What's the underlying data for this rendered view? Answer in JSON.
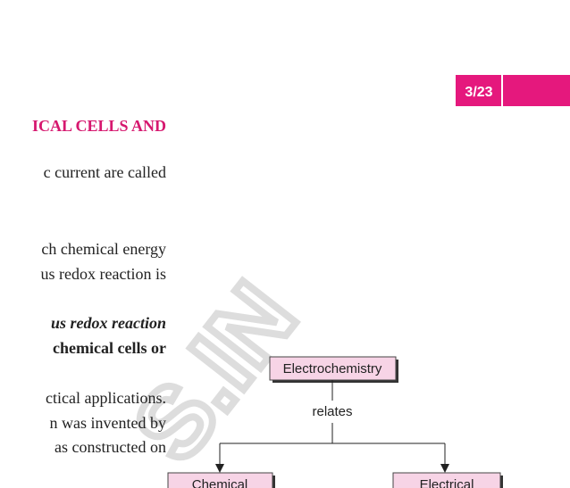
{
  "header": {
    "page_number": "3/23"
  },
  "text": {
    "heading": "ICAL CELLS AND",
    "lines": [
      "c current are called",
      "ch chemical energy",
      "us redox reaction is",
      "us redox reaction",
      "chemical cells or",
      "ctical applications.",
      "n was invented by",
      "as constructed on"
    ]
  },
  "diagram": {
    "nodes": [
      {
        "label": "Electrochemistry"
      },
      {
        "label": "Chemical"
      },
      {
        "label": "Electrical"
      }
    ],
    "edge_label": "relates"
  },
  "watermark": "S.IN"
}
